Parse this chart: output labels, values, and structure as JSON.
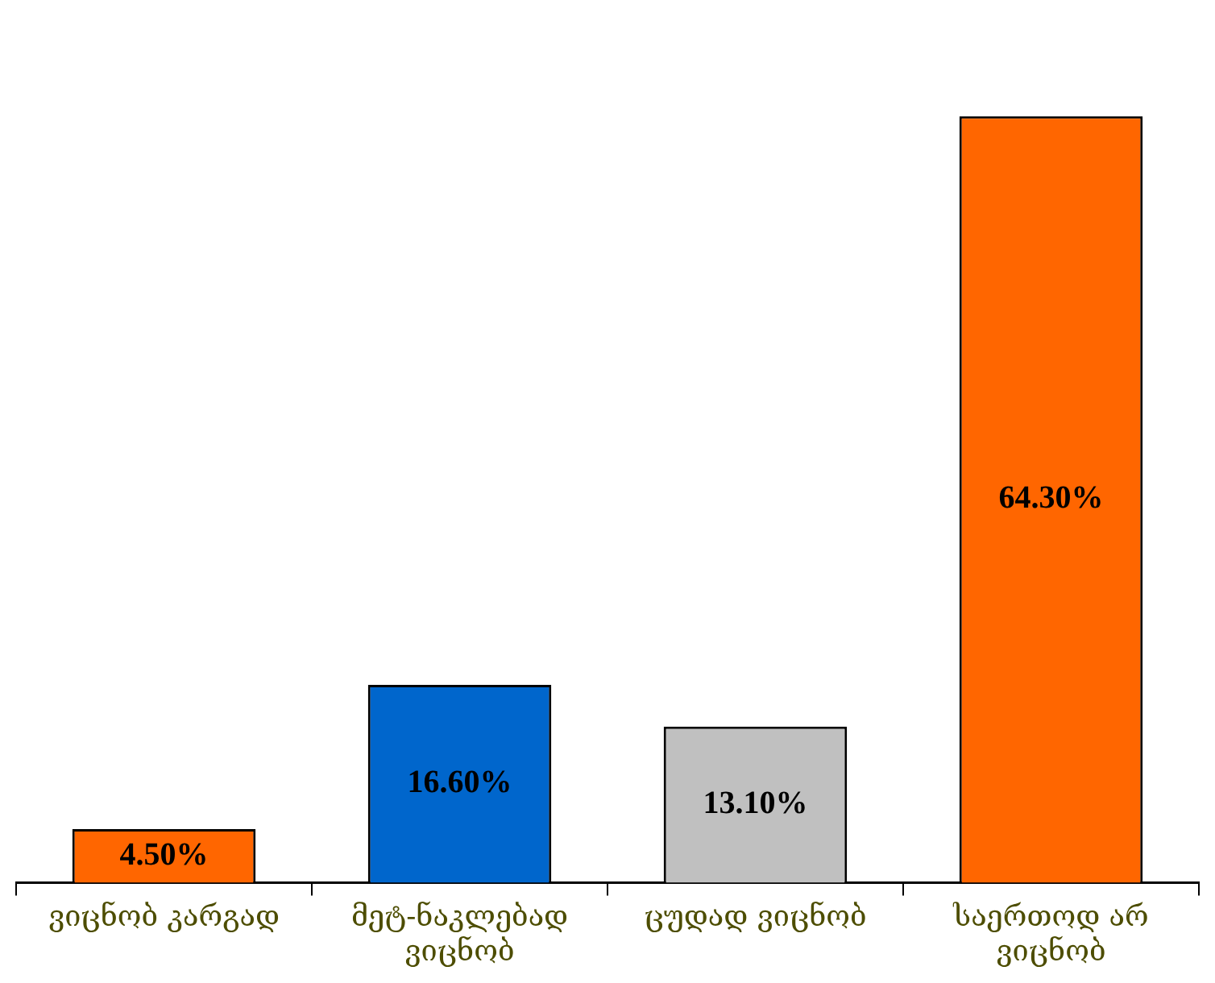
{
  "chart_data": {
    "type": "bar",
    "categories": [
      "ვიცნობ კარგად",
      "მეტ-ნაკლებად ვიცნობ",
      "ცუდად ვიცნობ",
      "საერთოდ არ ვიცნობ"
    ],
    "values": [
      4.5,
      16.6,
      13.1,
      64.3
    ],
    "colors": [
      "#ff6600",
      "#0066cc",
      "#c0c0c0",
      "#ff6600"
    ],
    "value_labels": [
      "4.50%",
      "16.60%",
      "13.10%",
      "64.30%"
    ],
    "tick_labels": "x",
    "grid": false,
    "legend": false
  }
}
